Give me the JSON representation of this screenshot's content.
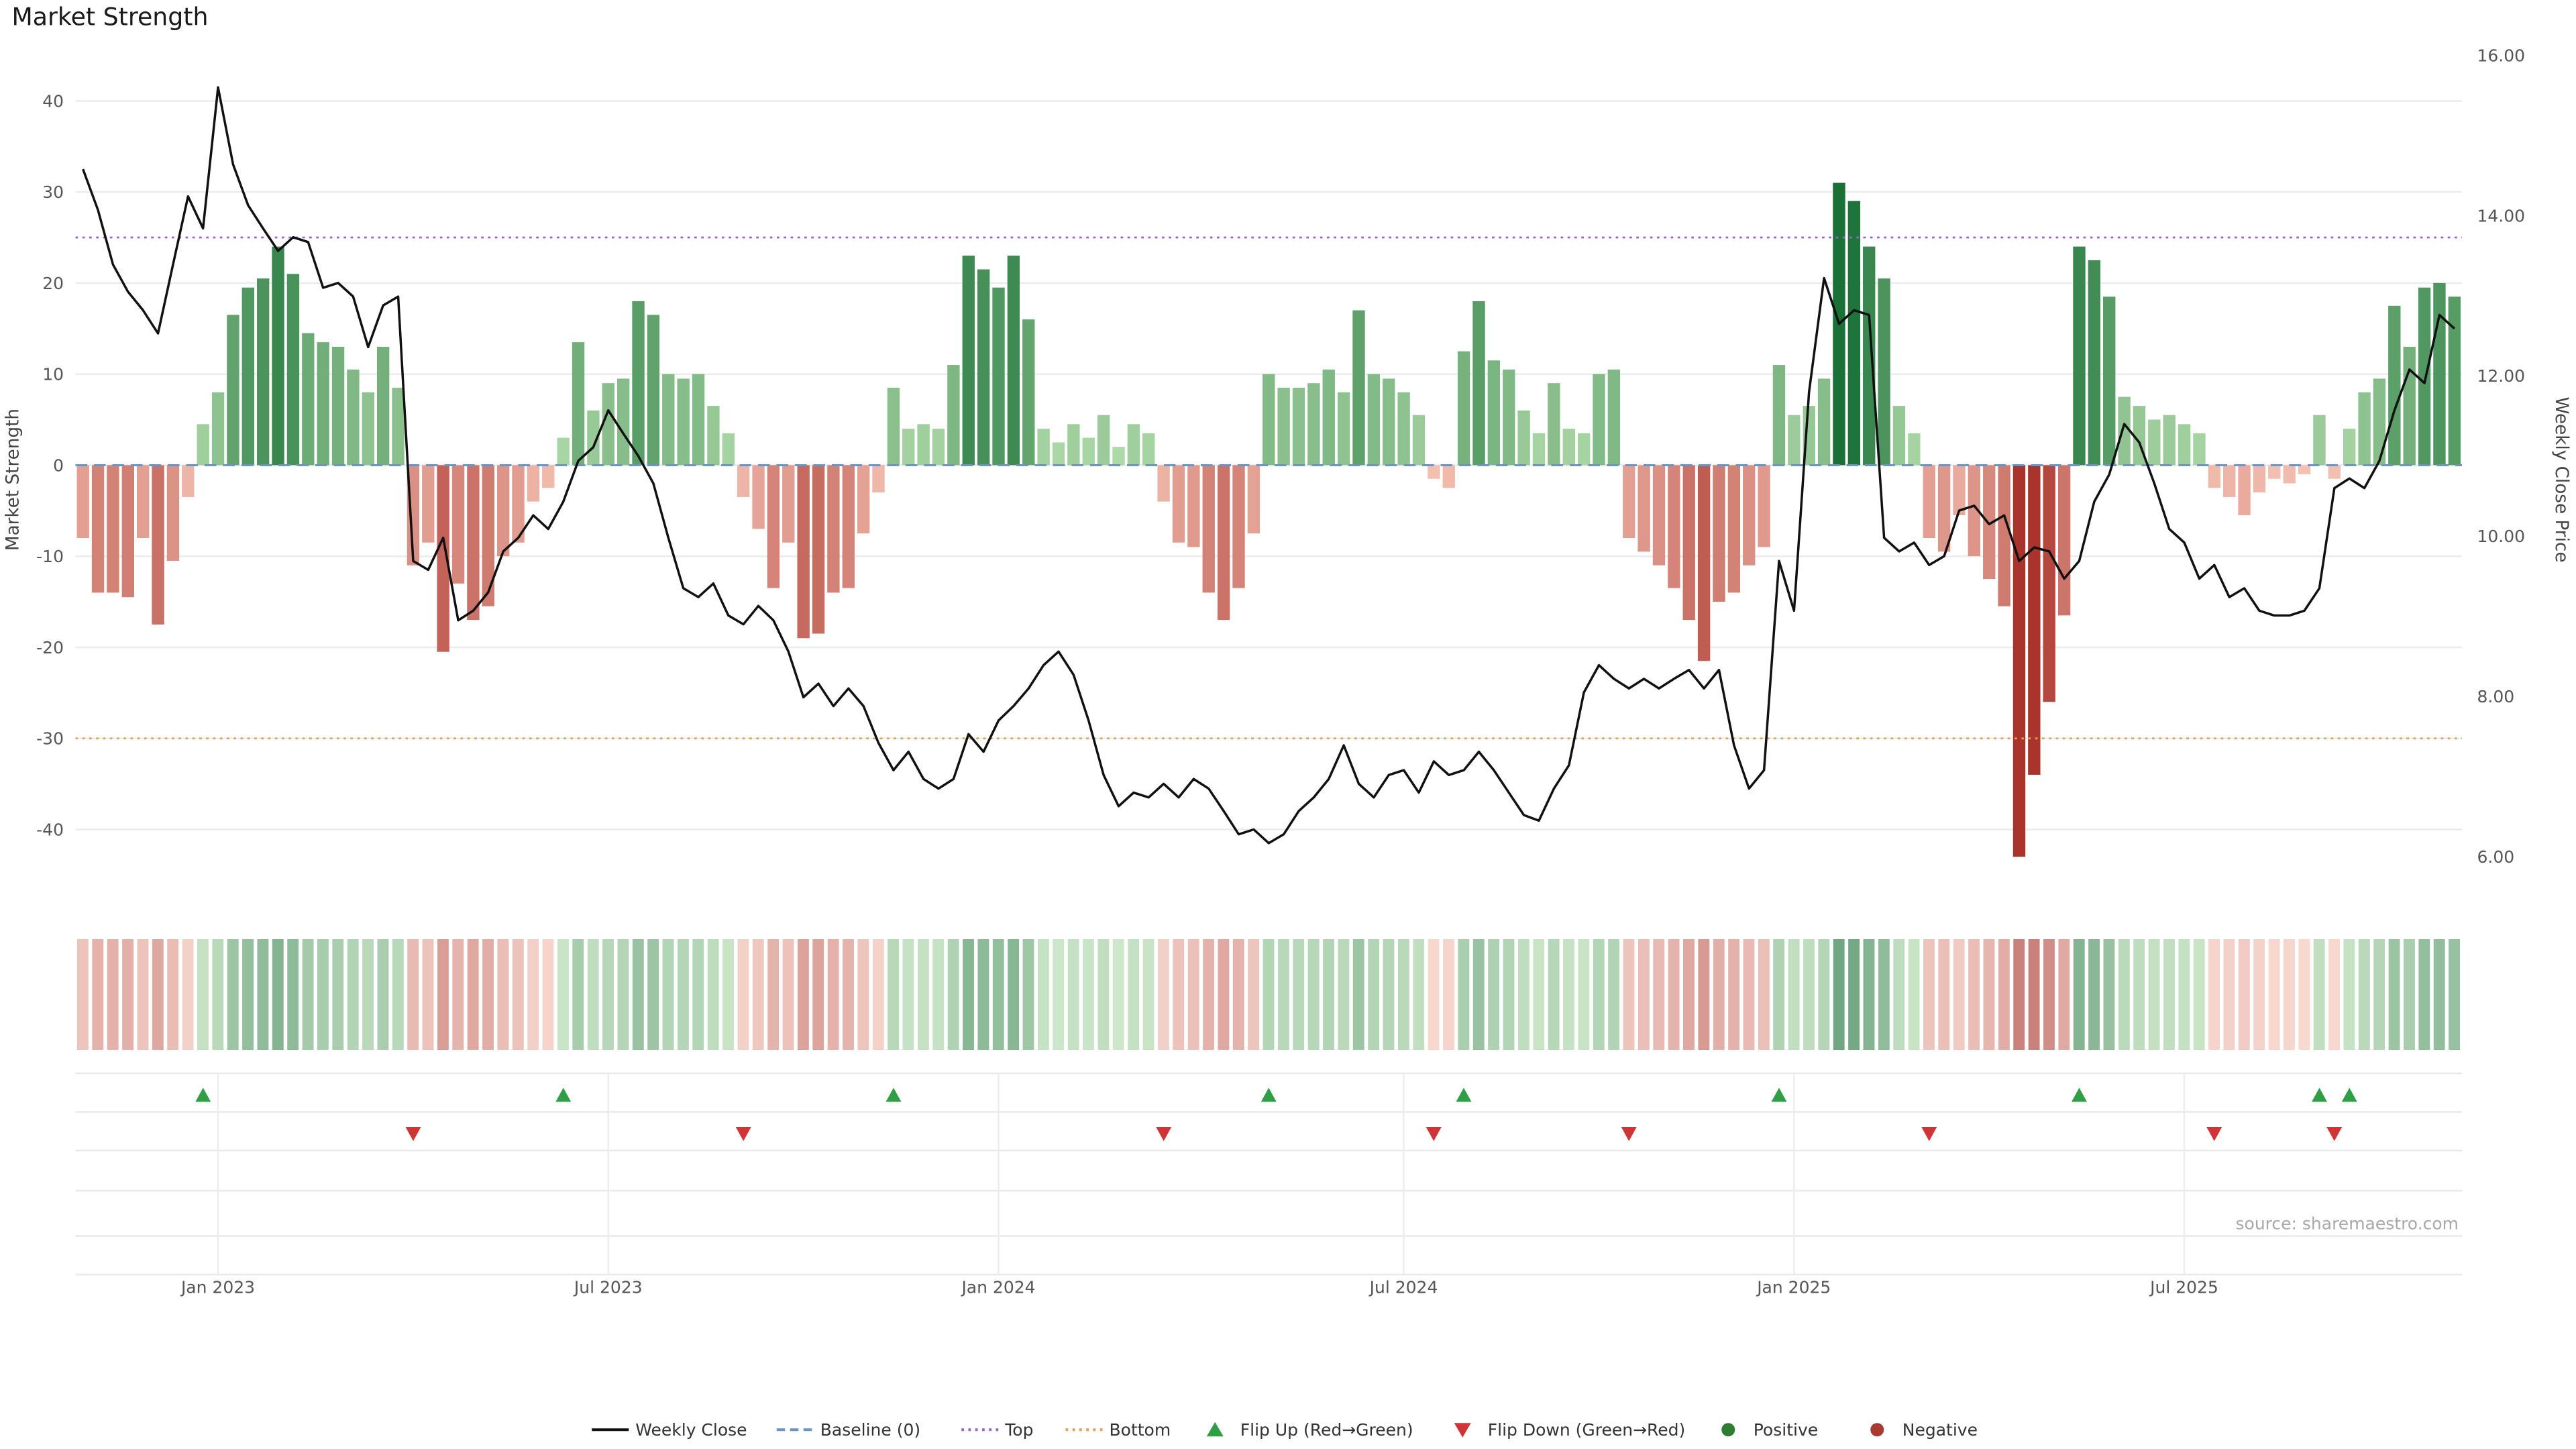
{
  "title": "Market Strength",
  "source": "source: sharemaestro.com",
  "axes": {
    "left_label": "Market Strength",
    "right_label": "Weekly Close Price",
    "left_ticks": [
      40,
      30,
      20,
      10,
      0,
      -10,
      -20,
      -30,
      -40
    ],
    "right_ticks": [
      {
        "value": 16,
        "label": "16.00"
      },
      {
        "value": 14,
        "label": "14.00"
      },
      {
        "value": 12,
        "label": "12.00"
      },
      {
        "value": 10,
        "label": "10.00"
      },
      {
        "value": 8,
        "label": "8.00"
      },
      {
        "value": 6,
        "label": "6.00"
      }
    ]
  },
  "colors": {
    "line": "#111111",
    "baseline": "#6b93c4",
    "top": "#9467bd",
    "bottom": "#e2a14f",
    "flip_up": "#2f9e44",
    "flip_down": "#cf3535",
    "positive_dot": "#2e7d32",
    "negative_dot": "#a93a31",
    "bar_green_light": "#b8e0b0",
    "bar_green_dark": "#1a7037",
    "bar_red_light": "#f6c6b7",
    "bar_red_dark": "#aa342c"
  },
  "legend": [
    {
      "key": "weekly-close",
      "label": "Weekly Close",
      "swatch": "line",
      "color": "#111111"
    },
    {
      "key": "baseline",
      "label": "Baseline (0)",
      "swatch": "dashed",
      "color": "#6b93c4"
    },
    {
      "key": "top",
      "label": "Top",
      "swatch": "dotted",
      "color": "#9467bd"
    },
    {
      "key": "bottom",
      "label": "Bottom",
      "swatch": "dotted",
      "color": "#e2a14f"
    },
    {
      "key": "flip-up",
      "label": "Flip Up (Red→Green)",
      "swatch": "tri-up",
      "color": "#2f9e44"
    },
    {
      "key": "flip-down",
      "label": "Flip Down (Green→Red)",
      "swatch": "tri-down",
      "color": "#cf3535"
    },
    {
      "key": "positive",
      "label": "Positive",
      "swatch": "dot",
      "color": "#2e7d32"
    },
    {
      "key": "negative",
      "label": "Negative",
      "swatch": "dot",
      "color": "#a93a31"
    }
  ],
  "chart_data": {
    "type": "combo",
    "title": "Market Strength",
    "frequency": "weekly",
    "start_date": "2022-10-31",
    "ylim_left": [
      -48,
      45
    ],
    "ylim_right": [
      5.4,
      16
    ],
    "grid": true,
    "legend_position": "bottom",
    "heatmap": "strip below main plot mirrors the weekly strength bar values (green positive / red negative, darker = larger magnitude)",
    "reference_lines": {
      "baseline": 0,
      "top": 25,
      "bottom": -30
    },
    "x_ticks": [
      {
        "index": 9,
        "label": "Jan 2023"
      },
      {
        "index": 35,
        "label": "Jul 2023"
      },
      {
        "index": 61,
        "label": "Jan 2024"
      },
      {
        "index": 88,
        "label": "Jul 2024"
      },
      {
        "index": 114,
        "label": "Jan 2025"
      },
      {
        "index": 140,
        "label": "Jul 2025"
      }
    ],
    "flip_up_indices": [
      8,
      32,
      54,
      79,
      92,
      113,
      133,
      149,
      151
    ],
    "flip_down_indices": [
      22,
      44,
      72,
      90,
      103,
      123,
      142,
      150
    ],
    "series": [
      {
        "name": "Market Strength",
        "type": "bar",
        "axis": "left",
        "values": [
          -8,
          -14,
          -14,
          -14.5,
          -8,
          -17.5,
          -10.5,
          -3.5,
          4.5,
          8,
          16.5,
          19.5,
          20.5,
          24,
          21,
          14.5,
          13.5,
          13,
          10.5,
          8,
          13,
          8.5,
          -11,
          -8.5,
          -20.5,
          -13,
          -17,
          -15.5,
          -10,
          -8.5,
          -4,
          -2.5,
          3,
          13.5,
          6,
          9,
          9.5,
          18,
          16.5,
          10,
          9.5,
          10,
          6.5,
          3.5,
          -3.5,
          -7,
          -13.5,
          -8.5,
          -19,
          -18.5,
          -14,
          -13.5,
          -7.5,
          -3,
          8.5,
          4,
          4.5,
          4,
          11,
          23,
          21.5,
          19.5,
          23,
          16,
          4,
          2.5,
          4.5,
          3,
          5.5,
          2,
          4.5,
          3.5,
          -4,
          -8.5,
          -9,
          -14,
          -17,
          -13.5,
          -7.5,
          10,
          8.5,
          8.5,
          9,
          10.5,
          8,
          17,
          10,
          9.5,
          8,
          5.5,
          -1.5,
          -2.5,
          12.5,
          18,
          11.5,
          10.5,
          6,
          3.5,
          9,
          4,
          3.5,
          10,
          10.5,
          -8,
          -9.5,
          -11,
          -13.5,
          -17,
          -21.5,
          -15,
          -14,
          -11,
          -9,
          11,
          5.5,
          6.5,
          9.5,
          31,
          29,
          24,
          20.5,
          6.5,
          3.5,
          -8,
          -9.5,
          -5.5,
          -10,
          -12.5,
          -15.5,
          -43,
          -34,
          -26,
          -16.5,
          24,
          22.5,
          18.5,
          7.5,
          6.5,
          5,
          5.5,
          4.5,
          3.5,
          -2.5,
          -3.5,
          -5.5,
          -3,
          -1.5,
          -2,
          -1,
          5.5,
          -1.5,
          4,
          8,
          9.5,
          17.5,
          13,
          19.5,
          20,
          18.5
        ]
      },
      {
        "name": "Weekly Close",
        "type": "line",
        "axis": "right",
        "values": [
          14.58,
          14.07,
          13.39,
          13.05,
          12.82,
          12.53,
          13.39,
          14.24,
          13.84,
          15.6,
          14.64,
          14.13,
          13.84,
          13.56,
          13.73,
          13.67,
          13.1,
          13.16,
          12.99,
          12.36,
          12.88,
          12.99,
          9.69,
          9.58,
          9.98,
          8.95,
          9.07,
          9.3,
          9.81,
          9.98,
          10.26,
          10.09,
          10.43,
          10.94,
          11.11,
          11.57,
          11.28,
          11.0,
          10.66,
          9.98,
          9.35,
          9.24,
          9.41,
          9.01,
          8.9,
          9.13,
          8.95,
          8.56,
          7.99,
          8.16,
          7.88,
          8.1,
          7.88,
          7.42,
          7.08,
          7.31,
          6.97,
          6.85,
          6.97,
          7.53,
          7.31,
          7.7,
          7.88,
          8.1,
          8.39,
          8.56,
          8.27,
          7.7,
          7.02,
          6.63,
          6.8,
          6.74,
          6.91,
          6.74,
          6.97,
          6.85,
          6.57,
          6.28,
          6.34,
          6.17,
          6.28,
          6.57,
          6.74,
          6.97,
          7.39,
          6.91,
          6.74,
          7.02,
          7.08,
          6.8,
          7.19,
          7.02,
          7.08,
          7.31,
          7.08,
          6.8,
          6.52,
          6.45,
          6.85,
          7.14,
          8.05,
          8.39,
          8.22,
          8.1,
          8.22,
          8.1,
          8.22,
          8.33,
          8.1,
          8.33,
          7.39,
          6.85,
          7.08,
          9.69,
          9.07,
          11.8,
          13.22,
          12.65,
          12.82,
          12.76,
          9.98,
          9.81,
          9.92,
          9.64,
          9.75,
          10.32,
          10.38,
          10.15,
          10.26,
          9.69,
          9.86,
          9.81,
          9.47,
          9.69,
          10.43,
          10.77,
          11.4,
          11.17,
          10.66,
          10.09,
          9.92,
          9.47,
          9.64,
          9.24,
          9.35,
          9.07,
          9.01,
          9.01,
          9.07,
          9.35,
          10.6,
          10.72,
          10.6,
          10.94,
          11.57,
          12.08,
          11.91,
          12.76,
          12.59
        ]
      }
    ]
  }
}
